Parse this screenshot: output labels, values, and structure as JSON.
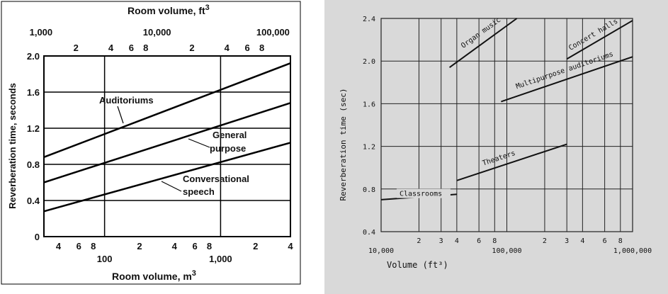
{
  "charts": [
    {
      "type": "line",
      "xscale": "log",
      "xlabel_bottom": "Room volume, m",
      "xlabel_bottom_sup": "3",
      "xlabel_top": "Room volume, ft",
      "xlabel_top_sup": "3",
      "ylabel": "Reverberation time, seconds",
      "xlim": [
        30,
        4000
      ],
      "ylim": [
        0,
        2.0
      ],
      "yticks": [
        "0",
        "0.4",
        "0.8",
        "1.2",
        "1.6",
        "2.0"
      ],
      "bottom_tick_labels": [
        {
          "x": 40,
          "label": "4"
        },
        {
          "x": 60,
          "label": "6"
        },
        {
          "x": 80,
          "label": "8"
        },
        {
          "x": 100,
          "label": "100"
        },
        {
          "x": 200,
          "label": "2"
        },
        {
          "x": 400,
          "label": "4"
        },
        {
          "x": 600,
          "label": "6"
        },
        {
          "x": 800,
          "label": "8"
        },
        {
          "x": 1000,
          "label": "1,000"
        },
        {
          "x": 2000,
          "label": "2"
        },
        {
          "x": 4000,
          "label": "4"
        }
      ],
      "top_tick_labels": [
        {
          "ft": 1000,
          "label": "1,000"
        },
        {
          "ft": 2000,
          "label": "2"
        },
        {
          "ft": 4000,
          "label": "4"
        },
        {
          "ft": 6000,
          "label": "6"
        },
        {
          "ft": 8000,
          "label": "8"
        },
        {
          "ft": 10000,
          "label": "10,000"
        },
        {
          "ft": 20000,
          "label": "2"
        },
        {
          "ft": 40000,
          "label": "4"
        },
        {
          "ft": 60000,
          "label": "6"
        },
        {
          "ft": 80000,
          "label": "8"
        },
        {
          "ft": 100000,
          "label": "100,000"
        }
      ],
      "series": [
        {
          "name": "Auditoriums",
          "x": [
            30,
            4000
          ],
          "y": [
            0.88,
            1.92
          ]
        },
        {
          "name": "General purpose",
          "x": [
            30,
            4000
          ],
          "y": [
            0.6,
            1.48
          ]
        },
        {
          "name": "Conversational speech",
          "x": [
            30,
            4000
          ],
          "y": [
            0.28,
            1.04
          ]
        }
      ],
      "annotations": {
        "auditoriums": "Auditoriums",
        "general_1": "General",
        "general_2": "purpose",
        "conv_1": "Conversational",
        "conv_2": "speech"
      }
    },
    {
      "type": "line",
      "xscale": "log",
      "xlabel": "Volume (ft³)",
      "ylabel": "Reverberation time (sec)",
      "xlim": [
        10000,
        1000000
      ],
      "ylim": [
        0.4,
        2.4
      ],
      "yticks": [
        "0.4",
        "0.8",
        "1.2",
        "1.6",
        "2.0",
        "2.4"
      ],
      "x_tick_labels": [
        {
          "x": 10000,
          "label": "10,000"
        },
        {
          "x": 20000,
          "label": "2"
        },
        {
          "x": 30000,
          "label": "3"
        },
        {
          "x": 40000,
          "label": "4"
        },
        {
          "x": 60000,
          "label": "6"
        },
        {
          "x": 80000,
          "label": "8"
        },
        {
          "x": 100000,
          "label": "100,000"
        },
        {
          "x": 200000,
          "label": "2"
        },
        {
          "x": 300000,
          "label": "3"
        },
        {
          "x": 400000,
          "label": "4"
        },
        {
          "x": 600000,
          "label": "6"
        },
        {
          "x": 800000,
          "label": "8"
        },
        {
          "x": 1000000,
          "label": "1,000,000"
        }
      ],
      "series": [
        {
          "name": "Classrooms",
          "x": [
            10000,
            40000
          ],
          "y": [
            0.7,
            0.75
          ]
        },
        {
          "name": "Theaters",
          "x": [
            40000,
            300000
          ],
          "y": [
            0.88,
            1.22
          ]
        },
        {
          "name": "Organ music",
          "x": [
            35000,
            120000
          ],
          "y": [
            1.94,
            2.4
          ]
        },
        {
          "name": "Multipurpose auditoriums",
          "x": [
            90000,
            1000000
          ],
          "y": [
            1.62,
            2.04
          ]
        },
        {
          "name": "Concert halls",
          "x": [
            300000,
            1000000
          ],
          "y": [
            2.02,
            2.38
          ]
        }
      ]
    }
  ]
}
